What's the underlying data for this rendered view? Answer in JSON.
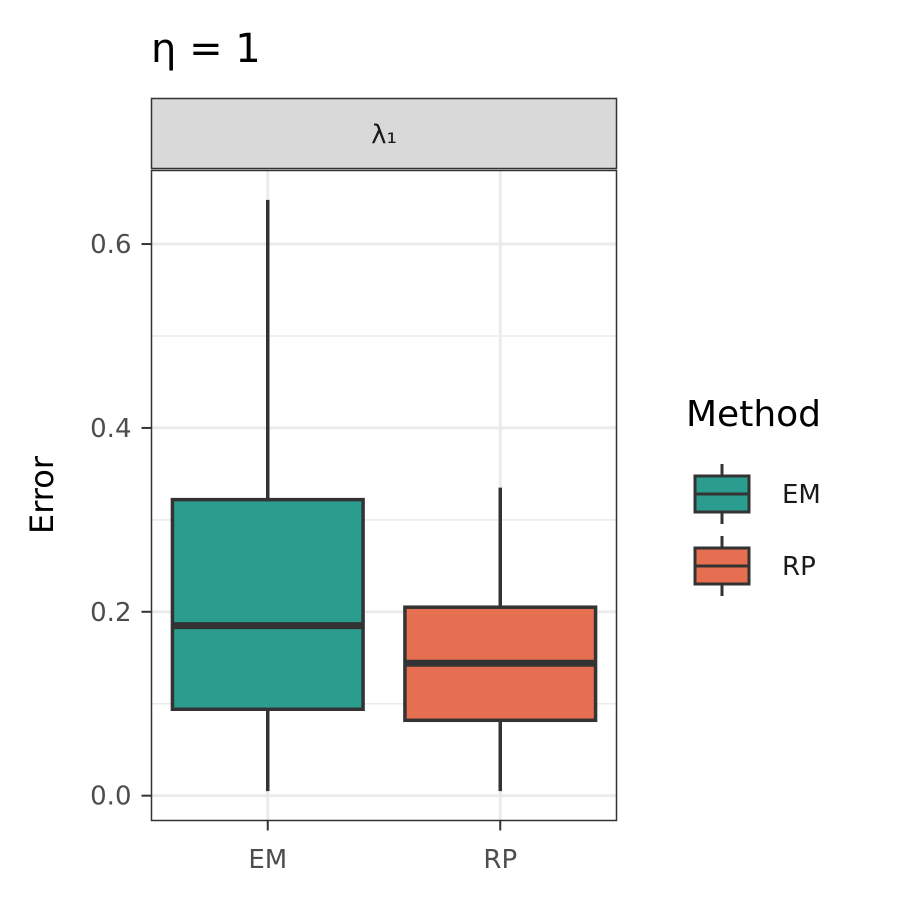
{
  "chart_data": {
    "type": "box",
    "title": "η = 1",
    "facet_label": "λ₁",
    "xlabel": "",
    "ylabel": "Error",
    "ylim": [
      -0.027,
      0.68
    ],
    "yticks": [
      0.0,
      0.2,
      0.4,
      0.6
    ],
    "ytick_labels": [
      "0.0",
      "0.2",
      "0.4",
      "0.6"
    ],
    "grid": true,
    "categories": [
      "EM",
      "RP"
    ],
    "boxes": [
      {
        "category": "EM",
        "color": "#2a9d8f",
        "whisker_low": 0.005,
        "q1": 0.094,
        "median": 0.185,
        "q3": 0.322,
        "whisker_high": 0.648
      },
      {
        "category": "RP",
        "color": "#e76f51",
        "whisker_low": 0.005,
        "q1": 0.082,
        "median": 0.144,
        "q3": 0.205,
        "whisker_high": 0.335
      }
    ],
    "legend": {
      "title": "Method",
      "position": "right",
      "entries": [
        {
          "label": "EM",
          "color": "#2a9d8f"
        },
        {
          "label": "RP",
          "color": "#e76f51"
        }
      ]
    }
  }
}
